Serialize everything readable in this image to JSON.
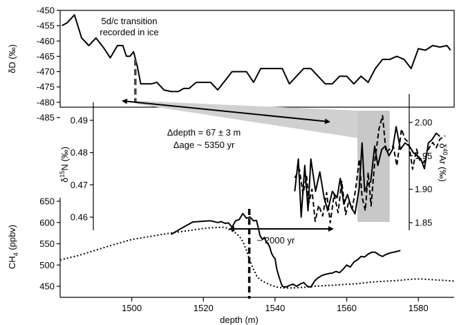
{
  "chart_data": [
    {
      "id": "dD",
      "type": "line",
      "ylabel": "δD (‰)",
      "ylim": [
        -485,
        -450
      ],
      "yticks": [
        -450,
        -455,
        -460,
        -465,
        -470,
        -475,
        -480,
        -485
      ],
      "series": [
        {
          "values": [
            [
              1480.5,
              -455
            ],
            [
              1482,
              -454
            ],
            [
              1484,
              -451.5
            ],
            [
              1486,
              -459
            ],
            [
              1488,
              -461.5
            ],
            [
              1490,
              -459
            ],
            [
              1492,
              -462
            ],
            [
              1494,
              -465.5
            ],
            [
              1496,
              -461.5
            ],
            [
              1497.5,
              -461.5
            ],
            [
              1498.5,
              -465
            ],
            [
              1499.5,
              -465
            ],
            [
              1500.5,
              -463.5
            ],
            [
              1501.5,
              -468
            ],
            [
              1502.5,
              -474
            ],
            [
              1504,
              -474
            ],
            [
              1505.5,
              -474
            ],
            [
              1507,
              -473.5
            ],
            [
              1509,
              -476
            ],
            [
              1511,
              -476.5
            ],
            [
              1513,
              -476.5
            ],
            [
              1514.5,
              -475.5
            ],
            [
              1516,
              -475.5
            ],
            [
              1518,
              -473.5
            ],
            [
              1520,
              -473.5
            ],
            [
              1522,
              -473.5
            ],
            [
              1524,
              -476
            ],
            [
              1526,
              -473
            ],
            [
              1528,
              -470
            ],
            [
              1530,
              -470
            ],
            [
              1532,
              -470
            ],
            [
              1534,
              -473.5
            ],
            [
              1536,
              -469
            ],
            [
              1538,
              -469
            ],
            [
              1540,
              -469
            ],
            [
              1542,
              -469
            ],
            [
              1544,
              -474
            ],
            [
              1546,
              -471.5
            ],
            [
              1548,
              -469
            ],
            [
              1550,
              -469
            ],
            [
              1552,
              -471.5
            ],
            [
              1554,
              -474
            ],
            [
              1556,
              -474
            ],
            [
              1558,
              -471.5
            ],
            [
              1560,
              -471.5
            ],
            [
              1562,
              -474
            ],
            [
              1564,
              -471.5
            ],
            [
              1566,
              -473.5
            ],
            [
              1568,
              -469
            ],
            [
              1570,
              -466
            ],
            [
              1572,
              -466
            ],
            [
              1574,
              -465
            ],
            [
              1576,
              -466
            ],
            [
              1578,
              -469
            ],
            [
              1580,
              -462.5
            ],
            [
              1582,
              -463
            ],
            [
              1584,
              -461.5
            ],
            [
              1586,
              -462
            ],
            [
              1588,
              -461.5
            ],
            [
              1589,
              -463
            ]
          ]
        }
      ]
    },
    {
      "id": "d15N_d40Ar",
      "type": "line",
      "ylabel": "δ15N (‰)",
      "ylabel_right": "δ40Ar (‰)",
      "ylim": [
        0.455,
        0.493
      ],
      "yticks": [
        0.46,
        0.47,
        0.48,
        0.49
      ],
      "ylim_right": [
        1.815,
        2.03
      ],
      "yticks_right": [
        1.85,
        1.9,
        1.95,
        2.0
      ],
      "series": [
        {
          "axis": "left",
          "style": "solid",
          "values": [
            [
              1545.5,
              0.468
            ],
            [
              1546.5,
              0.478
            ],
            [
              1547.3,
              0.46
            ],
            [
              1548.3,
              0.476
            ],
            [
              1549.2,
              0.462
            ],
            [
              1550,
              0.478
            ],
            [
              1551.3,
              0.468
            ],
            [
              1552.5,
              0.474
            ],
            [
              1553.7,
              0.466
            ],
            [
              1554.7,
              0.462
            ],
            [
              1556,
              0.468
            ],
            [
              1557.3,
              0.466
            ],
            [
              1558.2,
              0.472
            ],
            [
              1559.2,
              0.464
            ],
            [
              1560.2,
              0.467
            ],
            [
              1561.3,
              0.463
            ],
            [
              1562.3,
              0.461
            ],
            [
              1563.5,
              0.469
            ],
            [
              1564.3,
              0.483
            ],
            [
              1565,
              0.468
            ],
            [
              1565.8,
              0.47
            ],
            [
              1566.7,
              0.471
            ],
            [
              1567.8,
              0.482
            ],
            [
              1568.7,
              0.476
            ],
            [
              1569.8,
              0.481
            ],
            [
              1570.8,
              0.482
            ],
            [
              1571.8,
              0.479
            ],
            [
              1572.8,
              0.481
            ],
            [
              1573.8,
              0.488
            ],
            [
              1575,
              0.481
            ],
            [
              1576.3,
              0.483
            ],
            [
              1577.5,
              0.482
            ],
            [
              1578.6,
              0.48
            ],
            [
              1579.7,
              0.479
            ],
            [
              1580.7,
              0.478
            ],
            [
              1581.7,
              0.475
            ],
            [
              1582.8,
              0.483
            ],
            [
              1583.8,
              0.484
            ],
            [
              1585,
              0.486
            ],
            [
              1586,
              0.485
            ]
          ]
        },
        {
          "axis": "right",
          "style": "dashed",
          "values": [
            [
              1545.5,
              1.917
            ],
            [
              1546.8,
              1.93
            ],
            [
              1547.8,
              1.893
            ],
            [
              1548.8,
              1.92
            ],
            [
              1549.5,
              1.88
            ],
            [
              1550.3,
              1.9
            ],
            [
              1551.2,
              1.852
            ],
            [
              1552.2,
              1.876
            ],
            [
              1553.3,
              1.86
            ],
            [
              1554.4,
              1.895
            ],
            [
              1555.4,
              1.85
            ],
            [
              1556.5,
              1.892
            ],
            [
              1557.6,
              1.865
            ],
            [
              1558.6,
              1.912
            ],
            [
              1559.7,
              1.862
            ],
            [
              1560.6,
              1.883
            ],
            [
              1561.5,
              1.87
            ],
            [
              1562.5,
              1.9
            ],
            [
              1563.5,
              1.945
            ],
            [
              1564.3,
              1.888
            ],
            [
              1565.2,
              1.868
            ],
            [
              1566,
              1.925
            ],
            [
              1566.8,
              1.875
            ],
            [
              1567.8,
              1.94
            ],
            [
              1569,
              1.99
            ],
            [
              1570,
              2.01
            ],
            [
              1571,
              1.955
            ],
            [
              1572,
              1.96
            ],
            [
              1573,
              1.965
            ],
            [
              1574,
              1.935
            ],
            [
              1575.3,
              1.99
            ],
            [
              1576.3,
              1.975
            ],
            [
              1577.3,
              1.97
            ],
            [
              1578.4,
              1.93
            ],
            [
              1579.5,
              1.96
            ],
            [
              1580.6,
              1.94
            ],
            [
              1581.5,
              1.94
            ],
            [
              1582.8,
              1.96
            ],
            [
              1584,
              1.97
            ],
            [
              1585,
              1.962
            ],
            [
              1586,
              1.975
            ],
            [
              1587.5,
              1.98
            ]
          ]
        }
      ],
      "highlight": {
        "x_range": [
          1563,
          1572
        ],
        "y_range": [
          0.4585,
          0.493
        ]
      }
    },
    {
      "id": "CH4",
      "type": "line",
      "xlabel": "depth (m)",
      "ylabel": "CH4 (ppbv)",
      "ylim": [
        440,
        665
      ],
      "yticks": [
        450,
        500,
        550,
        600,
        650
      ],
      "xlim": [
        1480,
        1590
      ],
      "xticks": [
        1500,
        1520,
        1540,
        1560,
        1580
      ],
      "series": [
        {
          "style": "solid",
          "values": [
            [
              1511,
              572
            ],
            [
              1512,
              577
            ],
            [
              1514,
              587
            ],
            [
              1517,
              601
            ],
            [
              1520,
              603
            ],
            [
              1522,
              604
            ],
            [
              1524,
              600
            ],
            [
              1525,
              602
            ],
            [
              1526,
              598
            ],
            [
              1527,
              599
            ],
            [
              1528,
              589
            ],
            [
              1529,
              604
            ],
            [
              1530,
              607
            ],
            [
              1531,
              621
            ],
            [
              1532,
              610
            ],
            [
              1533,
              613
            ],
            [
              1534,
              604
            ],
            [
              1534.8,
              605
            ],
            [
              1535.3,
              588
            ],
            [
              1535.8,
              569
            ],
            [
              1536.5,
              560
            ],
            [
              1537,
              565
            ],
            [
              1537.5,
              555
            ],
            [
              1538,
              550
            ],
            [
              1538.5,
              543
            ],
            [
              1539,
              528
            ],
            [
              1539.5,
              520
            ],
            [
              1540,
              515
            ],
            [
              1540.5,
              490
            ],
            [
              1541,
              475
            ],
            [
              1541.5,
              462
            ],
            [
              1542,
              450
            ],
            [
              1543,
              448
            ],
            [
              1544,
              452
            ],
            [
              1545,
              455
            ],
            [
              1546,
              450
            ],
            [
              1547,
              455
            ],
            [
              1548,
              459
            ],
            [
              1549,
              450
            ],
            [
              1550,
              448
            ],
            [
              1551,
              462
            ],
            [
              1552,
              470
            ],
            [
              1553,
              475
            ],
            [
              1554,
              478
            ],
            [
              1555,
              480
            ],
            [
              1556,
              481
            ],
            [
              1557,
              485
            ],
            [
              1558,
              482
            ],
            [
              1559,
              490
            ],
            [
              1560,
              500
            ],
            [
              1561,
              495
            ],
            [
              1562,
              507
            ],
            [
              1563,
              512
            ],
            [
              1564,
              520
            ],
            [
              1565,
              519
            ],
            [
              1566,
              526
            ],
            [
              1567,
              530
            ],
            [
              1568,
              530
            ],
            [
              1569,
              524
            ],
            [
              1570,
              520
            ],
            [
              1571,
              525
            ],
            [
              1572,
              528
            ],
            [
              1573,
              530
            ],
            [
              1574,
              532
            ],
            [
              1575,
              534
            ]
          ]
        },
        {
          "style": "dotted",
          "values": [
            [
              1480,
              512
            ],
            [
              1485,
              522
            ],
            [
              1490,
              535
            ],
            [
              1495,
              548
            ],
            [
              1500,
              560
            ],
            [
              1505,
              567
            ],
            [
              1510,
              574
            ],
            [
              1515,
              580
            ],
            [
              1520,
              586
            ],
            [
              1523,
              588
            ],
            [
              1526,
              589
            ],
            [
              1528,
              580
            ],
            [
              1529,
              575
            ],
            [
              1530,
              568
            ],
            [
              1531,
              555
            ],
            [
              1532,
              535
            ],
            [
              1533,
              510
            ],
            [
              1534,
              490
            ],
            [
              1535,
              472
            ],
            [
              1536,
              465
            ],
            [
              1537,
              460
            ],
            [
              1539,
              452
            ],
            [
              1541,
              447
            ],
            [
              1543,
              446
            ],
            [
              1545,
              446
            ],
            [
              1547,
              447
            ],
            [
              1549,
              448
            ],
            [
              1551,
              450
            ],
            [
              1553,
              451
            ],
            [
              1555,
              452
            ],
            [
              1557,
              453
            ],
            [
              1559,
              454
            ],
            [
              1561,
              455
            ],
            [
              1563,
              456
            ],
            [
              1565,
              458
            ],
            [
              1567,
              460
            ],
            [
              1569,
              461
            ],
            [
              1571,
              462
            ],
            [
              1573,
              463
            ],
            [
              1575,
              464
            ],
            [
              1577,
              466
            ],
            [
              1579,
              467
            ],
            [
              1581,
              467
            ],
            [
              1583,
              466
            ],
            [
              1585,
              465
            ],
            [
              1587,
              464
            ],
            [
              1590,
              462
            ]
          ]
        }
      ],
      "markers": [
        {
          "x": 1532.8,
          "y_range": [
            429,
            531
          ]
        }
      ]
    }
  ],
  "annotations": {
    "transition_line1": "5d/c transition",
    "transition_line2": "recorded in ice",
    "delta_depth": "Δdepth = 67 ± 3 m",
    "delta_age": "Δage ~ 5350 yr",
    "duration": "~ 2000 yr"
  }
}
